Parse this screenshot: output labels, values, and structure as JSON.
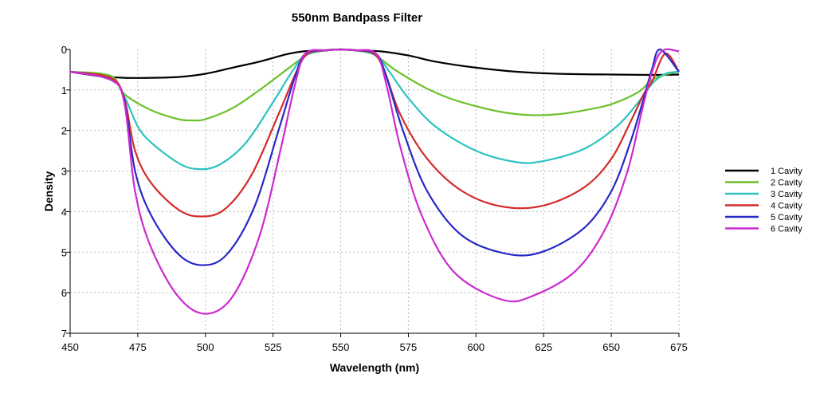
{
  "chart_data": {
    "type": "line",
    "title": "550nm Bandpass Filter",
    "xlabel": "Wavelength (nm)",
    "ylabel": "Density",
    "xlim": [
      450,
      675
    ],
    "ylim": [
      0,
      7
    ],
    "y_inverted": true,
    "x_ticks": [
      450,
      475,
      500,
      525,
      550,
      575,
      600,
      625,
      650,
      675
    ],
    "y_ticks": [
      0,
      1,
      2,
      3,
      4,
      5,
      6,
      7
    ],
    "grid": true,
    "legend_position": "right",
    "series": [
      {
        "name": "1 Cavity",
        "color": "#000000",
        "points": [
          [
            450,
            0.55
          ],
          [
            460,
            0.65
          ],
          [
            470,
            0.7
          ],
          [
            480,
            0.7
          ],
          [
            490,
            0.68
          ],
          [
            500,
            0.6
          ],
          [
            510,
            0.45
          ],
          [
            520,
            0.3
          ],
          [
            530,
            0.12
          ],
          [
            536,
            0.05
          ],
          [
            545,
            0.02
          ],
          [
            550,
            0.0
          ],
          [
            555,
            0.02
          ],
          [
            565,
            0.05
          ],
          [
            575,
            0.15
          ],
          [
            585,
            0.3
          ],
          [
            600,
            0.45
          ],
          [
            615,
            0.55
          ],
          [
            630,
            0.6
          ],
          [
            650,
            0.62
          ],
          [
            665,
            0.63
          ],
          [
            675,
            0.62
          ]
        ]
      },
      {
        "name": "2 Cavity",
        "color": "#6ac12a",
        "points": [
          [
            450,
            0.55
          ],
          [
            465,
            0.65
          ],
          [
            470,
            1.1
          ],
          [
            480,
            1.5
          ],
          [
            490,
            1.72
          ],
          [
            495,
            1.75
          ],
          [
            500,
            1.72
          ],
          [
            510,
            1.45
          ],
          [
            520,
            1.0
          ],
          [
            530,
            0.5
          ],
          [
            535,
            0.25
          ],
          [
            540,
            0.06
          ],
          [
            550,
            0.0
          ],
          [
            560,
            0.06
          ],
          [
            565,
            0.25
          ],
          [
            570,
            0.5
          ],
          [
            580,
            0.9
          ],
          [
            590,
            1.2
          ],
          [
            600,
            1.4
          ],
          [
            610,
            1.55
          ],
          [
            620,
            1.62
          ],
          [
            630,
            1.6
          ],
          [
            640,
            1.5
          ],
          [
            650,
            1.35
          ],
          [
            660,
            1.05
          ],
          [
            665,
            0.75
          ],
          [
            670,
            0.62
          ],
          [
            675,
            0.55
          ]
        ]
      },
      {
        "name": "3 Cavity",
        "color": "#2cc3c0",
        "points": [
          [
            450,
            0.55
          ],
          [
            465,
            0.7
          ],
          [
            470,
            1.15
          ],
          [
            475,
            1.9
          ],
          [
            480,
            2.3
          ],
          [
            490,
            2.8
          ],
          [
            497,
            2.95
          ],
          [
            505,
            2.85
          ],
          [
            515,
            2.3
          ],
          [
            525,
            1.3
          ],
          [
            532,
            0.55
          ],
          [
            537,
            0.15
          ],
          [
            545,
            0.02
          ],
          [
            550,
            0.0
          ],
          [
            555,
            0.02
          ],
          [
            563,
            0.15
          ],
          [
            568,
            0.55
          ],
          [
            575,
            1.2
          ],
          [
            585,
            1.9
          ],
          [
            600,
            2.5
          ],
          [
            615,
            2.78
          ],
          [
            625,
            2.75
          ],
          [
            640,
            2.45
          ],
          [
            652,
            1.9
          ],
          [
            660,
            1.3
          ],
          [
            665,
            0.85
          ],
          [
            670,
            0.6
          ],
          [
            675,
            0.55
          ]
        ]
      },
      {
        "name": "4 Cavity",
        "color": "#d42a2a",
        "points": [
          [
            450,
            0.55
          ],
          [
            465,
            0.7
          ],
          [
            470,
            1.2
          ],
          [
            474,
            2.5
          ],
          [
            480,
            3.3
          ],
          [
            490,
            3.95
          ],
          [
            498,
            4.12
          ],
          [
            507,
            3.95
          ],
          [
            517,
            3.1
          ],
          [
            527,
            1.6
          ],
          [
            534,
            0.5
          ],
          [
            538,
            0.1
          ],
          [
            545,
            0.02
          ],
          [
            550,
            0.0
          ],
          [
            555,
            0.02
          ],
          [
            562,
            0.1
          ],
          [
            566,
            0.5
          ],
          [
            572,
            1.6
          ],
          [
            582,
            2.7
          ],
          [
            595,
            3.5
          ],
          [
            610,
            3.88
          ],
          [
            625,
            3.85
          ],
          [
            640,
            3.4
          ],
          [
            650,
            2.7
          ],
          [
            657,
            1.8
          ],
          [
            662,
            1.1
          ],
          [
            665,
            0.8
          ],
          [
            670,
            0.1
          ],
          [
            675,
            0.55
          ]
        ]
      },
      {
        "name": "5 Cavity",
        "color": "#2828c8",
        "points": [
          [
            450,
            0.55
          ],
          [
            465,
            0.75
          ],
          [
            470,
            1.25
          ],
          [
            474,
            3.0
          ],
          [
            480,
            4.1
          ],
          [
            490,
            5.05
          ],
          [
            499,
            5.32
          ],
          [
            508,
            5.05
          ],
          [
            518,
            3.9
          ],
          [
            527,
            2.0
          ],
          [
            533,
            0.7
          ],
          [
            537,
            0.1
          ],
          [
            545,
            0.02
          ],
          [
            550,
            0.0
          ],
          [
            555,
            0.02
          ],
          [
            563,
            0.1
          ],
          [
            567,
            0.7
          ],
          [
            573,
            2.0
          ],
          [
            582,
            3.5
          ],
          [
            595,
            4.6
          ],
          [
            612,
            5.05
          ],
          [
            625,
            4.98
          ],
          [
            640,
            4.4
          ],
          [
            650,
            3.5
          ],
          [
            657,
            2.3
          ],
          [
            662,
            1.2
          ],
          [
            665,
            0.5
          ],
          [
            668,
            0.0
          ],
          [
            675,
            0.55
          ]
        ]
      },
      {
        "name": "6 Cavity",
        "color": "#cc2ad0",
        "points": [
          [
            450,
            0.55
          ],
          [
            465,
            0.75
          ],
          [
            470,
            1.3
          ],
          [
            474,
            3.5
          ],
          [
            480,
            4.9
          ],
          [
            490,
            6.1
          ],
          [
            500,
            6.52
          ],
          [
            510,
            6.1
          ],
          [
            520,
            4.6
          ],
          [
            528,
            2.4
          ],
          [
            533,
            0.9
          ],
          [
            537,
            0.1
          ],
          [
            545,
            0.02
          ],
          [
            550,
            0.0
          ],
          [
            555,
            0.02
          ],
          [
            563,
            0.1
          ],
          [
            567,
            0.9
          ],
          [
            572,
            2.4
          ],
          [
            580,
            4.1
          ],
          [
            592,
            5.5
          ],
          [
            610,
            6.18
          ],
          [
            622,
            6.05
          ],
          [
            637,
            5.45
          ],
          [
            648,
            4.4
          ],
          [
            656,
            3.0
          ],
          [
            661,
            1.6
          ],
          [
            664,
            0.8
          ],
          [
            667,
            0.2
          ],
          [
            670,
            0.0
          ],
          [
            675,
            0.05
          ]
        ]
      }
    ]
  }
}
